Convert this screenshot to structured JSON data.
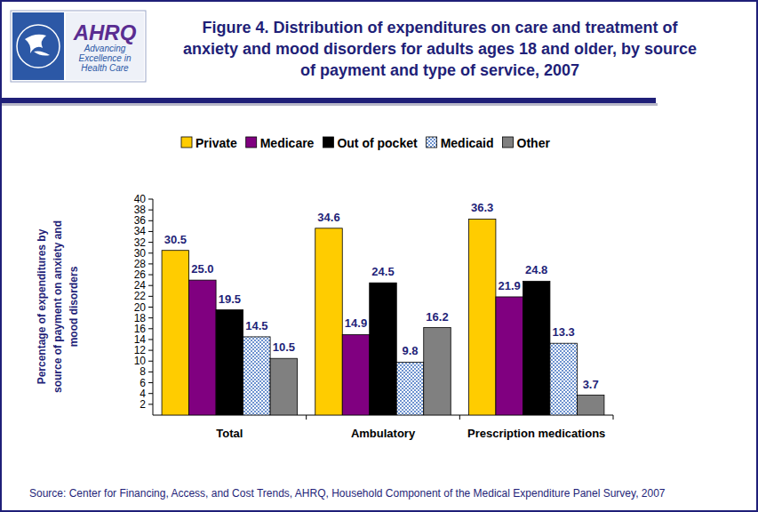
{
  "chart_data": {
    "type": "bar",
    "title": "Figure 4. Distribution of expenditures on care and treatment of anxiety and mood disorders for adults ages 18 and older, by source of payment and type of service, 2007",
    "y_label": "Percentage of expenditures by source of payment on anxiety and mood disorders",
    "categories": [
      "Total",
      "Ambulatory",
      "Prescription medications"
    ],
    "series": [
      {
        "name": "Private",
        "color": "#ffcc00",
        "values": [
          30.5,
          34.6,
          36.3
        ]
      },
      {
        "name": "Medicare",
        "color": "#800080",
        "values": [
          25.0,
          14.9,
          21.9
        ],
        "value_labels": [
          "25.0",
          "14.9",
          "21.9"
        ]
      },
      {
        "name": "Out of pocket",
        "color": "#000000",
        "values": [
          19.5,
          24.5,
          24.8
        ]
      },
      {
        "name": "Medicaid",
        "color": "#3d6fc0",
        "values": [
          14.5,
          9.8,
          13.3
        ]
      },
      {
        "name": "Other",
        "color": "#808080",
        "values": [
          10.5,
          16.2,
          3.7
        ]
      }
    ],
    "ylim": [
      0,
      40
    ],
    "yticks": [
      2,
      4,
      6,
      8,
      10,
      12,
      14,
      16,
      18,
      20,
      22,
      24,
      26,
      28,
      30,
      32,
      34,
      36,
      38,
      40
    ],
    "grid": false,
    "legend": "top",
    "data_labels": true,
    "source": "Source: Center for Financing, Access, and Cost Trends, AHRQ, Household Component of the Medical Expenditure Panel Survey, 2007",
    "annotations": [
      "AHRQ",
      "Advancing",
      "Excellence in",
      "Health Care"
    ]
  }
}
